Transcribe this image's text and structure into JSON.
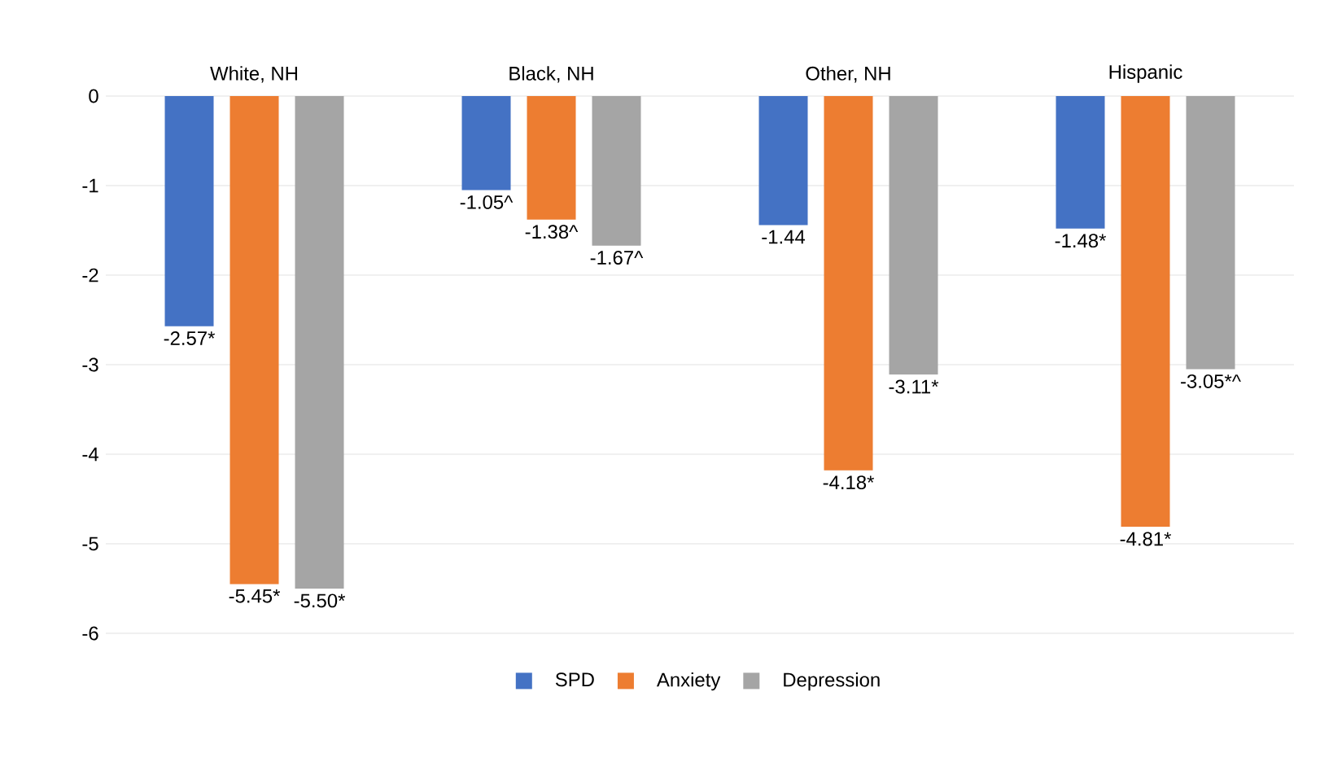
{
  "chart_data": {
    "type": "bar",
    "categories": [
      "White, NH",
      "Black, NH",
      "Other, NH",
      "Hispanic"
    ],
    "series": [
      {
        "name": "SPD",
        "color": "#4472c4",
        "values": [
          -2.57,
          -1.05,
          -1.44,
          -1.48
        ],
        "value_labels": [
          "-2.57*",
          "-1.05^",
          "-1.44",
          "-1.48*"
        ]
      },
      {
        "name": "Anxiety",
        "color": "#ed7d31",
        "values": [
          -5.45,
          -1.38,
          -4.18,
          -4.81
        ],
        "value_labels": [
          "-5.45*",
          "-1.38^",
          "-4.18*",
          "-4.81*"
        ]
      },
      {
        "name": "Depression",
        "color": "#a5a5a5",
        "values": [
          -5.5,
          -1.67,
          -3.11,
          -3.05
        ],
        "value_labels": [
          "-5.50*",
          "-1.67^",
          "-3.11*",
          "-3.05*^"
        ]
      }
    ],
    "ylim": [
      -6,
      0
    ],
    "yticks": [
      -6,
      -5,
      -4,
      -3,
      -2,
      -1,
      0
    ],
    "grid": "y",
    "legend": "bottom"
  }
}
